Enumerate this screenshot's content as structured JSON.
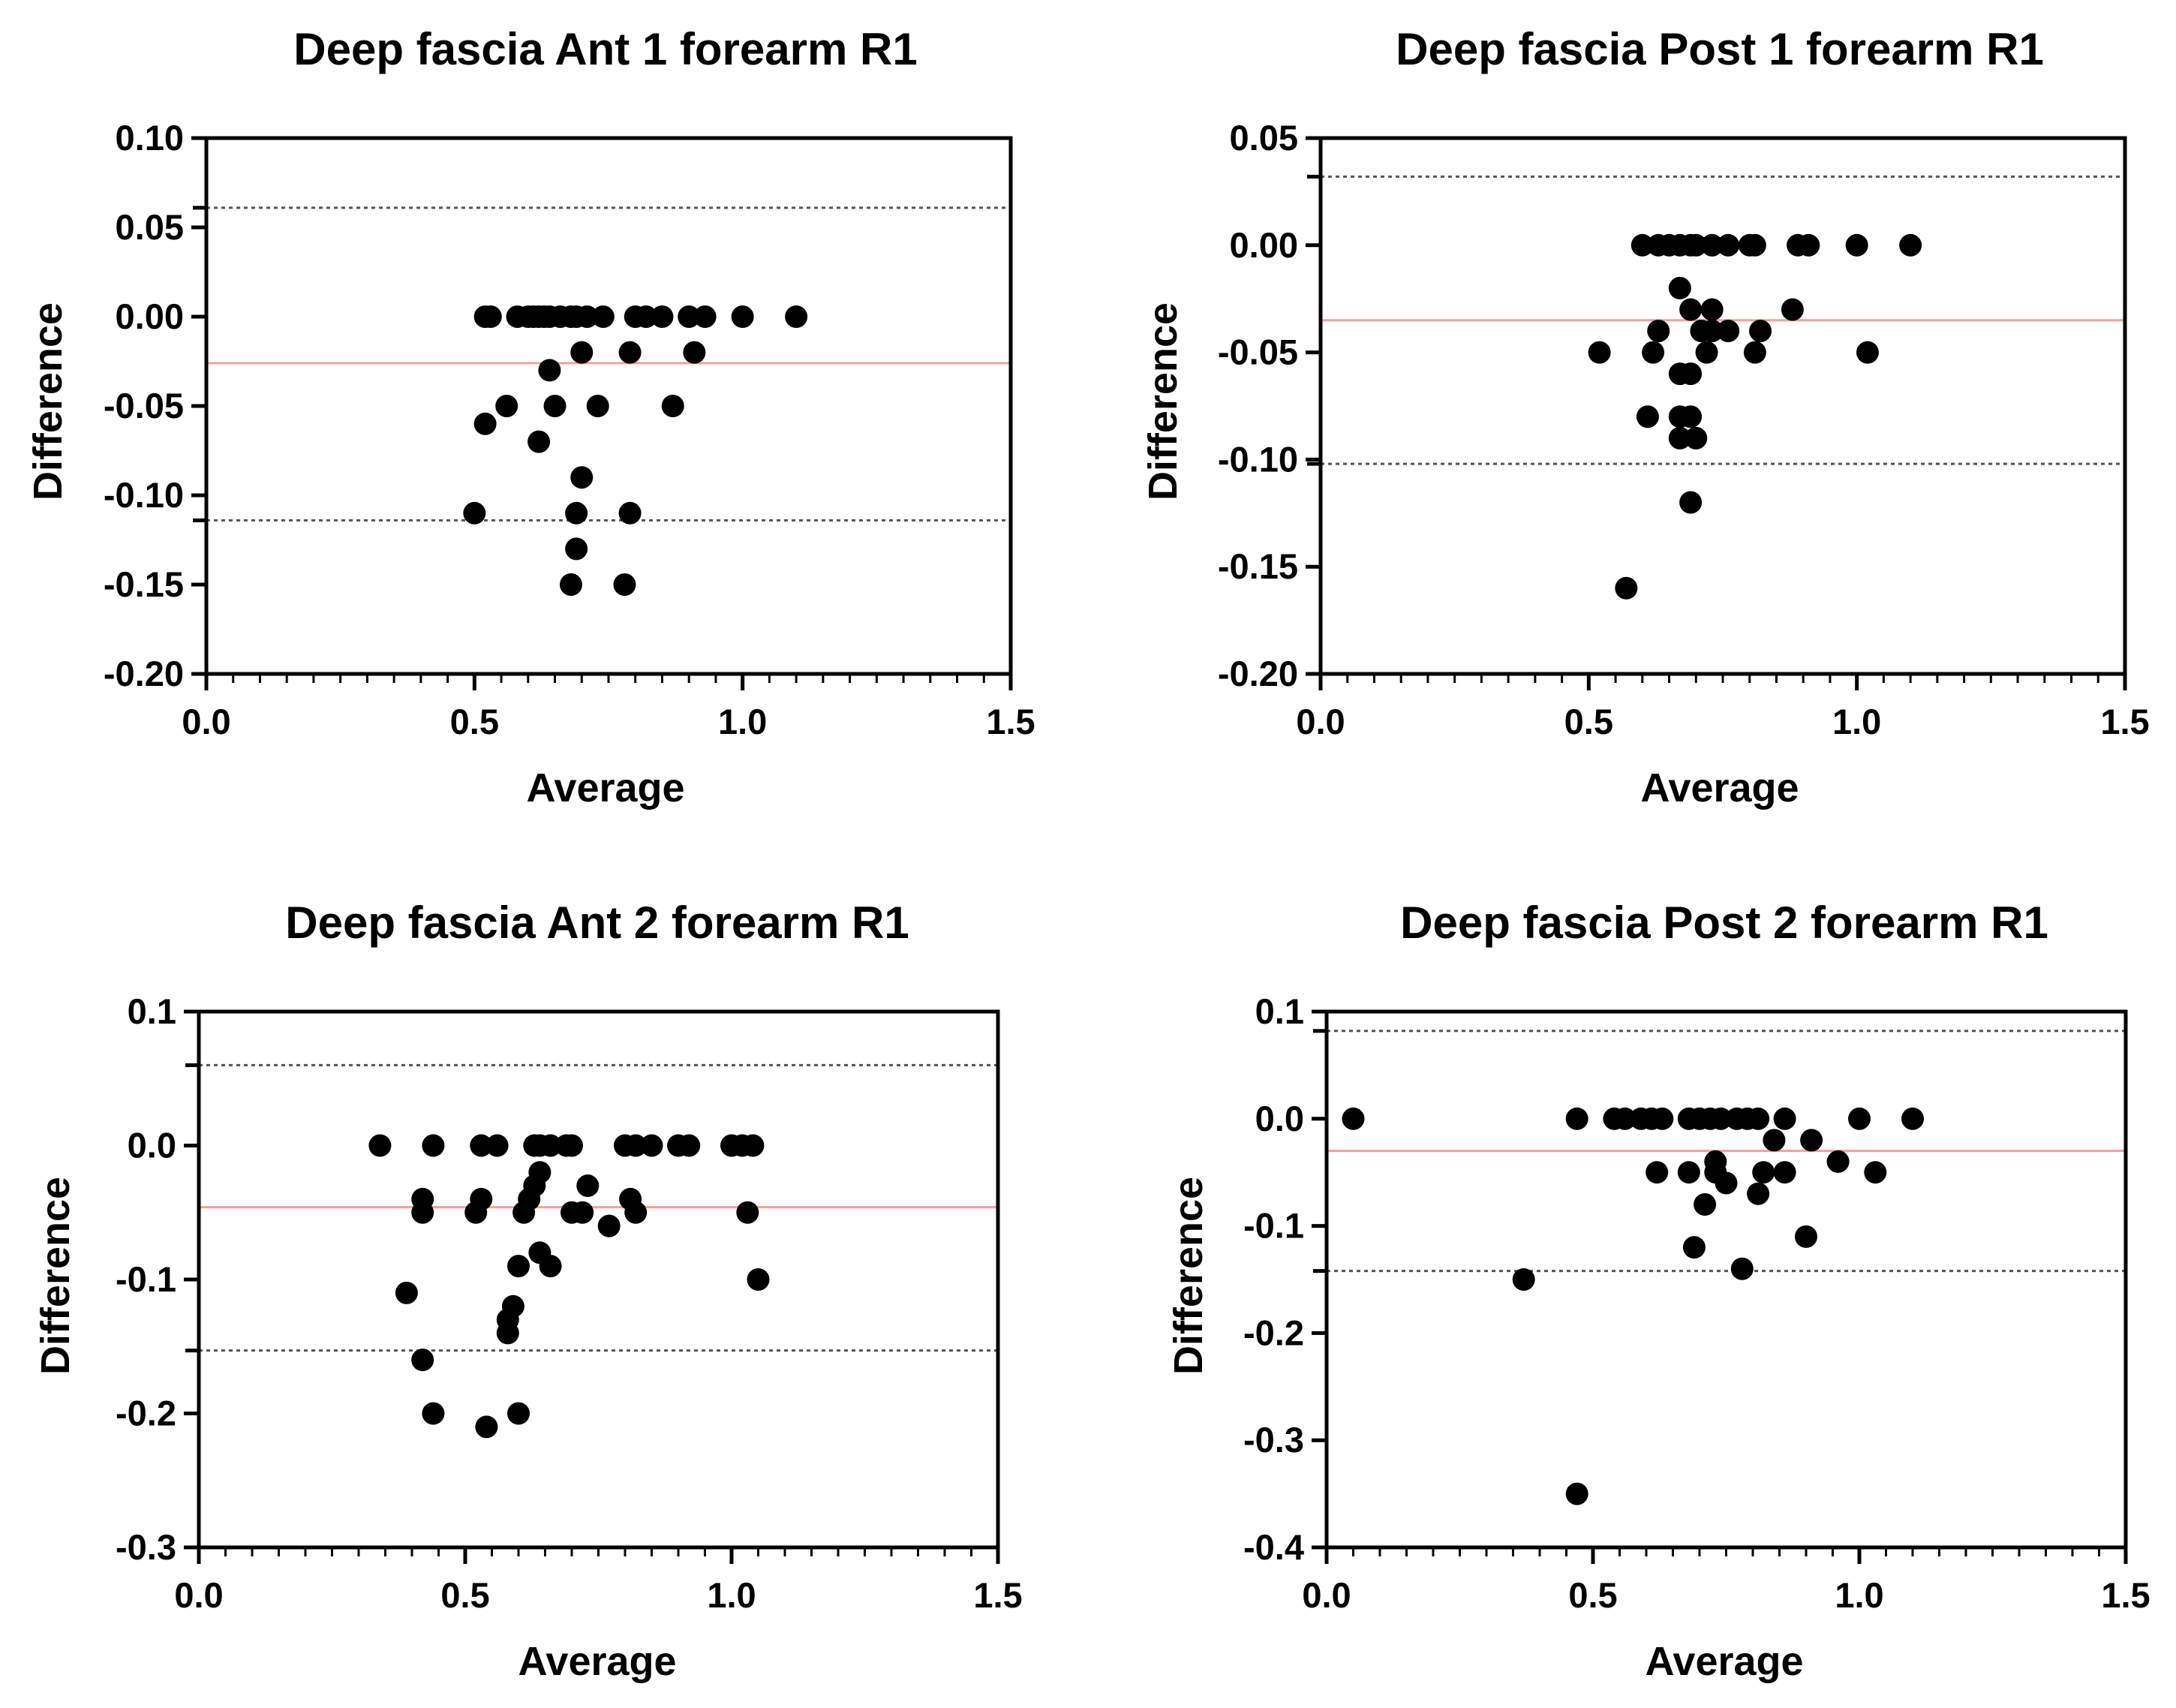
{
  "colors": {
    "points": "#000000",
    "mean_line": "#f0a0a0",
    "limit_line": "#555555",
    "axes": "#000000"
  },
  "chart_data": [
    {
      "type": "scatter",
      "title": "Deep fascia Ant 1 forearm R1",
      "xlabel": "Average",
      "ylabel": "Difference",
      "xlim": [
        0,
        1.5
      ],
      "ylim": [
        -0.2,
        0.1
      ],
      "xticks": [
        "0.0",
        "0.5",
        "1.0",
        "1.5"
      ],
      "yticks": [
        "0.10",
        "0.05",
        "0.00",
        "-0.05",
        "-0.10",
        "-0.15",
        "-0.20"
      ],
      "ytick_values": [
        0.1,
        0.05,
        0,
        -0.05,
        -0.1,
        -0.15,
        -0.2
      ],
      "mean_difference": -0.026,
      "limits_of_agreement": [
        0.061,
        -0.114
      ],
      "points": [
        [
          0.52,
          0
        ],
        [
          0.53,
          0
        ],
        [
          0.58,
          0
        ],
        [
          0.6,
          0
        ],
        [
          0.61,
          0
        ],
        [
          0.62,
          0
        ],
        [
          0.63,
          0
        ],
        [
          0.64,
          0
        ],
        [
          0.66,
          0
        ],
        [
          0.68,
          0
        ],
        [
          0.69,
          0
        ],
        [
          0.71,
          0
        ],
        [
          0.74,
          0
        ],
        [
          0.8,
          0
        ],
        [
          0.82,
          0
        ],
        [
          0.85,
          0
        ],
        [
          0.9,
          0
        ],
        [
          0.93,
          0
        ],
        [
          1.0,
          0
        ],
        [
          1.1,
          0
        ],
        [
          0.7,
          -0.02
        ],
        [
          0.79,
          -0.02
        ],
        [
          0.91,
          -0.02
        ],
        [
          0.64,
          -0.03
        ],
        [
          0.56,
          -0.05
        ],
        [
          0.65,
          -0.05
        ],
        [
          0.73,
          -0.05
        ],
        [
          0.87,
          -0.05
        ],
        [
          0.52,
          -0.06
        ],
        [
          0.62,
          -0.07
        ],
        [
          0.7,
          -0.09
        ],
        [
          0.5,
          -0.11
        ],
        [
          0.69,
          -0.11
        ],
        [
          0.79,
          -0.11
        ],
        [
          0.69,
          -0.13
        ],
        [
          0.68,
          -0.15
        ],
        [
          0.78,
          -0.15
        ]
      ]
    },
    {
      "type": "scatter",
      "title": "Deep fascia Post 1 forearm R1",
      "xlabel": "Average",
      "ylabel": "Difference",
      "xlim": [
        0,
        1.5
      ],
      "ylim": [
        -0.2,
        0.05
      ],
      "xticks": [
        "0.0",
        "0.5",
        "1.0",
        "1.5"
      ],
      "yticks": [
        "0.05",
        "0.00",
        "-0.05",
        "-0.10",
        "-0.15",
        "-0.20"
      ],
      "ytick_values": [
        0.05,
        0,
        -0.05,
        -0.1,
        -0.15,
        -0.2
      ],
      "mean_difference": -0.035,
      "limits_of_agreement": [
        0.032,
        -0.102
      ],
      "points": [
        [
          0.6,
          0
        ],
        [
          0.63,
          0
        ],
        [
          0.65,
          0
        ],
        [
          0.67,
          0
        ],
        [
          0.69,
          0
        ],
        [
          0.7,
          0
        ],
        [
          0.73,
          0
        ],
        [
          0.76,
          0
        ],
        [
          0.8,
          0
        ],
        [
          0.81,
          0
        ],
        [
          0.89,
          0
        ],
        [
          0.91,
          0
        ],
        [
          1.0,
          0
        ],
        [
          1.1,
          0
        ],
        [
          0.67,
          -0.02
        ],
        [
          0.69,
          -0.03
        ],
        [
          0.73,
          -0.03
        ],
        [
          0.88,
          -0.03
        ],
        [
          0.63,
          -0.04
        ],
        [
          0.71,
          -0.04
        ],
        [
          0.73,
          -0.04
        ],
        [
          0.76,
          -0.04
        ],
        [
          0.82,
          -0.04
        ],
        [
          0.52,
          -0.05
        ],
        [
          0.62,
          -0.05
        ],
        [
          0.72,
          -0.05
        ],
        [
          0.81,
          -0.05
        ],
        [
          1.02,
          -0.05
        ],
        [
          0.67,
          -0.06
        ],
        [
          0.69,
          -0.06
        ],
        [
          0.61,
          -0.08
        ],
        [
          0.67,
          -0.08
        ],
        [
          0.69,
          -0.08
        ],
        [
          0.67,
          -0.09
        ],
        [
          0.7,
          -0.09
        ],
        [
          0.69,
          -0.12
        ],
        [
          0.57,
          -0.16
        ]
      ]
    },
    {
      "type": "scatter",
      "title": "Deep fascia Ant 2 forearm R1",
      "xlabel": "Average",
      "ylabel": "Difference",
      "xlim": [
        0,
        1.5
      ],
      "ylim": [
        -0.3,
        0.1
      ],
      "xticks": [
        "0.0",
        "0.5",
        "1.0",
        "1.5"
      ],
      "yticks": [
        "0.1",
        "0.0",
        "-0.1",
        "-0.2",
        "-0.3"
      ],
      "ytick_values": [
        0.1,
        0,
        -0.1,
        -0.2,
        -0.3
      ],
      "mean_difference": -0.046,
      "limits_of_agreement": [
        0.06,
        -0.153
      ],
      "points": [
        [
          0.34,
          0
        ],
        [
          0.44,
          0
        ],
        [
          0.53,
          0
        ],
        [
          0.56,
          0
        ],
        [
          0.63,
          0
        ],
        [
          0.64,
          0
        ],
        [
          0.66,
          0
        ],
        [
          0.69,
          0
        ],
        [
          0.7,
          0
        ],
        [
          0.8,
          0
        ],
        [
          0.82,
          0
        ],
        [
          0.85,
          0
        ],
        [
          0.9,
          0
        ],
        [
          0.92,
          0
        ],
        [
          1.0,
          0
        ],
        [
          1.02,
          0
        ],
        [
          1.04,
          0
        ],
        [
          0.64,
          -0.02
        ],
        [
          0.63,
          -0.03
        ],
        [
          0.73,
          -0.03
        ],
        [
          0.42,
          -0.04
        ],
        [
          0.53,
          -0.04
        ],
        [
          0.62,
          -0.04
        ],
        [
          0.81,
          -0.04
        ],
        [
          0.42,
          -0.05
        ],
        [
          0.52,
          -0.05
        ],
        [
          0.61,
          -0.05
        ],
        [
          0.7,
          -0.05
        ],
        [
          0.72,
          -0.05
        ],
        [
          0.82,
          -0.05
        ],
        [
          1.03,
          -0.05
        ],
        [
          0.77,
          -0.06
        ],
        [
          0.64,
          -0.08
        ],
        [
          0.6,
          -0.09
        ],
        [
          0.66,
          -0.09
        ],
        [
          1.05,
          -0.1
        ],
        [
          0.39,
          -0.11
        ],
        [
          0.59,
          -0.12
        ],
        [
          0.58,
          -0.13
        ],
        [
          0.58,
          -0.14
        ],
        [
          0.42,
          -0.16
        ],
        [
          0.44,
          -0.2
        ],
        [
          0.6,
          -0.2
        ],
        [
          0.54,
          -0.21
        ]
      ]
    },
    {
      "type": "scatter",
      "title": "Deep fascia Post 2 forearm R1",
      "xlabel": "Average",
      "ylabel": "Difference",
      "xlim": [
        0,
        1.5
      ],
      "ylim": [
        -0.4,
        0.1
      ],
      "xticks": [
        "0.0",
        "0.5",
        "1.0",
        "1.5"
      ],
      "yticks": [
        "0.1",
        "0.0",
        "-0.1",
        "-0.2",
        "-0.3",
        "-0.4"
      ],
      "ytick_values": [
        0.1,
        0,
        -0.1,
        -0.2,
        -0.3,
        -0.4
      ],
      "mean_difference": -0.03,
      "limits_of_agreement": [
        0.082,
        -0.142
      ],
      "points": [
        [
          0.05,
          0
        ],
        [
          0.47,
          0
        ],
        [
          0.54,
          0
        ],
        [
          0.56,
          0
        ],
        [
          0.59,
          0
        ],
        [
          0.61,
          0
        ],
        [
          0.63,
          0
        ],
        [
          0.68,
          0
        ],
        [
          0.7,
          0
        ],
        [
          0.72,
          0
        ],
        [
          0.74,
          0
        ],
        [
          0.77,
          0
        ],
        [
          0.79,
          0
        ],
        [
          0.81,
          0
        ],
        [
          0.86,
          0
        ],
        [
          1.0,
          0
        ],
        [
          1.1,
          0
        ],
        [
          0.84,
          -0.02
        ],
        [
          0.91,
          -0.02
        ],
        [
          0.73,
          -0.04
        ],
        [
          0.96,
          -0.04
        ],
        [
          0.62,
          -0.05
        ],
        [
          0.68,
          -0.05
        ],
        [
          0.73,
          -0.05
        ],
        [
          0.82,
          -0.05
        ],
        [
          0.86,
          -0.05
        ],
        [
          1.03,
          -0.05
        ],
        [
          0.75,
          -0.06
        ],
        [
          0.81,
          -0.07
        ],
        [
          0.71,
          -0.08
        ],
        [
          0.9,
          -0.11
        ],
        [
          0.69,
          -0.12
        ],
        [
          0.78,
          -0.14
        ],
        [
          0.37,
          -0.15
        ],
        [
          0.47,
          -0.35
        ]
      ]
    }
  ]
}
